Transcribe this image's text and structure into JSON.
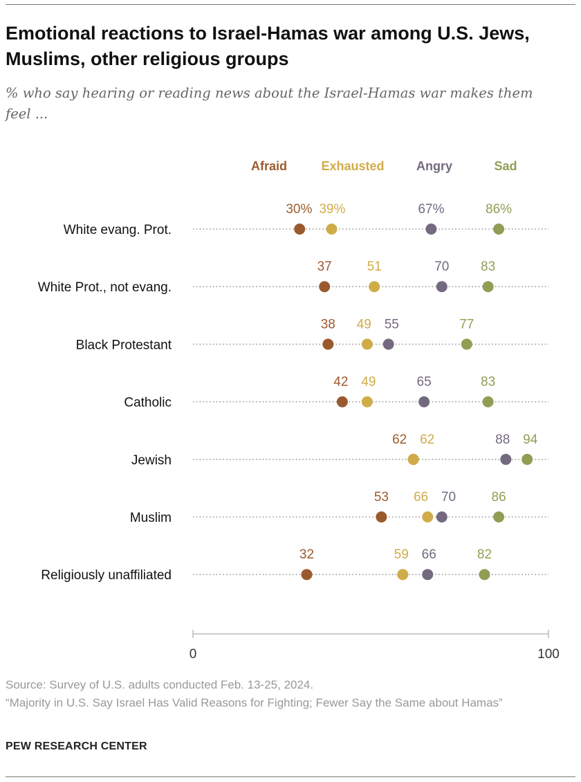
{
  "title": "Emotional reactions to Israel-Hamas war among U.S. Jews, Muslims, other religious groups",
  "subtitle": "% who say hearing or reading news about the Israel-Hamas war makes them feel ...",
  "source": "Source: Survey of U.S. adults conducted Feb. 13-25, 2024.",
  "report": "“Majority in U.S. Say Israel Has Valid Reasons for Fighting; Fewer Say the Same about Hamas”",
  "brand": "PEW RESEARCH CENTER",
  "chart_data": {
    "type": "dot",
    "categories": [
      "White evang. Prot.",
      "White Prot., not evang.",
      "Black Protestant",
      "Catholic",
      "Jewish",
      "Muslim",
      "Religiously unaffiliated"
    ],
    "series": [
      {
        "name": "Afraid",
        "color": "#9b5a2e",
        "values": [
          30,
          37,
          38,
          42,
          62,
          53,
          32
        ]
      },
      {
        "name": "Exhausted",
        "color": "#d0ac48",
        "values": [
          39,
          51,
          49,
          49,
          62,
          66,
          59
        ]
      },
      {
        "name": "Angry",
        "color": "#736a80",
        "values": [
          67,
          70,
          55,
          65,
          88,
          70,
          66
        ]
      },
      {
        "name": "Sad",
        "color": "#929d54",
        "values": [
          86,
          83,
          77,
          83,
          94,
          86,
          82
        ]
      }
    ],
    "first_row_suffix": "%",
    "xlim": [
      0,
      100
    ],
    "x_ticks": [
      "0",
      "100"
    ],
    "legend_position": "top",
    "grid": false
  }
}
